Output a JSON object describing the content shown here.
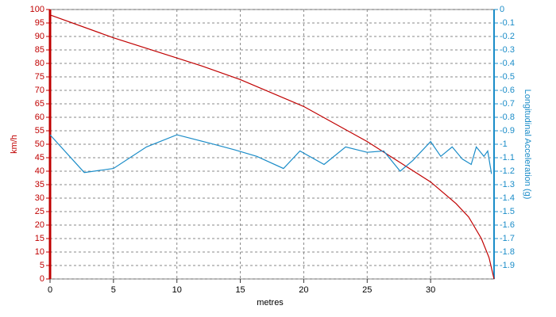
{
  "chart_data": {
    "type": "line",
    "xlabel": "metres",
    "ylabel": "km/h",
    "y2label": "Longitudinal Acceleration (g)",
    "xlim": [
      0,
      35
    ],
    "xticks": [
      0,
      5,
      10,
      15,
      20,
      25,
      30
    ],
    "ylim": [
      0,
      100
    ],
    "yticks": [
      0,
      5,
      10,
      15,
      20,
      25,
      30,
      35,
      40,
      45,
      50,
      55,
      60,
      65,
      70,
      75,
      80,
      85,
      90,
      95,
      100
    ],
    "y2lim": [
      -2,
      0
    ],
    "y2ticks": [
      0,
      -0.1,
      -0.2,
      -0.3,
      -0.4,
      -0.5,
      -0.6,
      -0.7,
      -0.8,
      -0.9,
      -1,
      -1.1,
      -1.2,
      -1.3,
      -1.4,
      -1.5,
      -1.6,
      -1.7,
      -1.8,
      -1.9
    ],
    "grid": true,
    "ycolor": "#c00000",
    "y2color": "#1a8cc8",
    "series": [
      {
        "name": "km/h",
        "color": "#c00000",
        "x": [
          0,
          5,
          10,
          12,
          15,
          20,
          25,
          28,
          30,
          32,
          33,
          34,
          34.6,
          35
        ],
        "values": [
          98,
          89.5,
          82,
          79,
          74,
          64,
          51,
          42,
          36,
          28,
          23,
          15,
          8,
          0
        ]
      },
      {
        "name": "Longitudinal Acceleration (g)",
        "color": "#1a8cc8",
        "axis": "y2",
        "x": [
          0,
          2.7,
          5,
          7.6,
          10,
          12.5,
          14.5,
          16.3,
          18.4,
          19.7,
          21.6,
          23.3,
          25,
          26.3,
          27.6,
          28.6,
          30,
          30.8,
          31.7,
          32.5,
          33.2,
          33.6,
          34.2,
          34.5,
          34.8
        ],
        "values": [
          -0.93,
          -1.21,
          -1.18,
          -1.02,
          -0.93,
          -0.99,
          -1.04,
          -1.09,
          -1.18,
          -1.05,
          -1.15,
          -1.02,
          -1.06,
          -1.05,
          -1.2,
          -1.12,
          -0.98,
          -1.09,
          -1.02,
          -1.11,
          -1.15,
          -1.02,
          -1.09,
          -1.05,
          -1.22
        ]
      }
    ]
  }
}
